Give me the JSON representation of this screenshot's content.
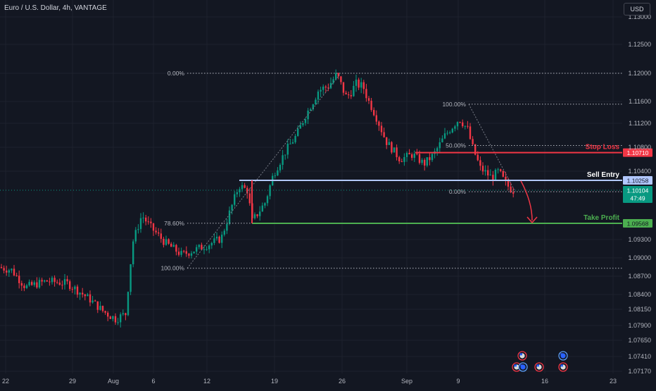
{
  "header": {
    "title": "Euro / U.S. Dollar, 4h, VANTAGE",
    "currency_button": "USD"
  },
  "colors": {
    "background": "#131722",
    "grid": "#1e222d",
    "up": "#089981",
    "down": "#f23645",
    "text": "#b2b5be",
    "stop": "#f23645",
    "take": "#4caf50",
    "entry": "#b2c8ff",
    "current": "#089981"
  },
  "chart_data": {
    "type": "candlestick",
    "y_axis": {
      "ticks": [
        "1.13000",
        "1.12500",
        "1.12000",
        "1.11600",
        "1.11200",
        "1.10800",
        "1.10400",
        "1.09300",
        "1.09000",
        "1.08700",
        "1.08400",
        "1.08150",
        "1.07900",
        "1.07650",
        "1.07410",
        "1.07170"
      ]
    },
    "x_axis": {
      "ticks": [
        "22",
        "29",
        "Aug",
        "6",
        "12",
        "19",
        "26",
        "Sep",
        "9",
        "16",
        "23"
      ]
    },
    "fib_upper": {
      "levels": [
        {
          "label": "0.00%",
          "value": 1.12
        },
        {
          "label": "78.60%",
          "value": 1.0957
        },
        {
          "label": "100.00%",
          "value": 1.0883
        }
      ]
    },
    "fib_lower": {
      "levels": [
        {
          "label": "100.00%",
          "value": 1.1155
        },
        {
          "label": "50.00%",
          "value": 1.1083
        },
        {
          "label": "0.00%",
          "value": 1.1008
        }
      ]
    },
    "price_levels": [
      {
        "name": "Stop Loss",
        "label": "Stop Loss",
        "value": 1.1071,
        "badge": "1.10710"
      },
      {
        "name": "Sell Entry",
        "label": "Sell Entry",
        "value": 1.10258,
        "badge": "1.10258"
      },
      {
        "name": "Take Profit",
        "label": "Take Profit",
        "value": 1.09568,
        "badge": "1.09568"
      }
    ],
    "current_price": {
      "value": 1.10104,
      "badge": "1.10104",
      "countdown": "47:49"
    }
  }
}
